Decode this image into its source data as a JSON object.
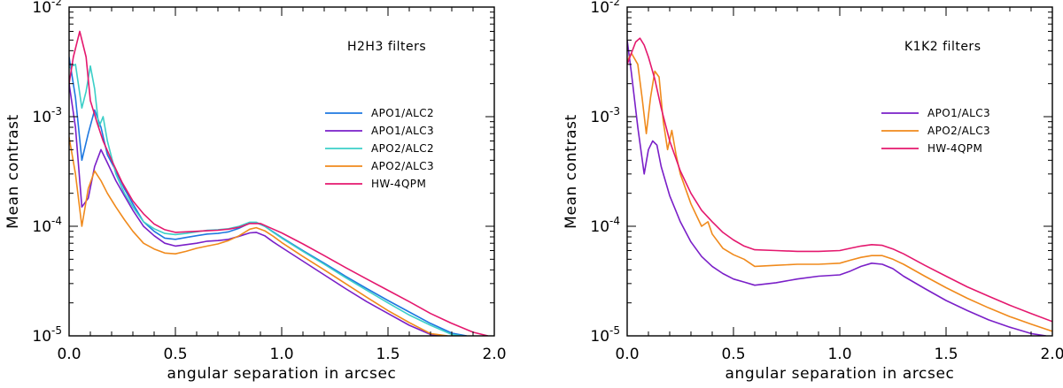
{
  "chart_data": [
    {
      "type": "line",
      "title": "H2H3 filters",
      "xlabel": "angular separation in arcsec",
      "ylabel": "Mean contrast",
      "xlim": [
        0.0,
        2.0
      ],
      "ylim": [
        1e-05,
        0.01
      ],
      "yscale": "log",
      "x_ticks": [
        "0.0",
        "0.5",
        "1.0",
        "1.5",
        "2.0"
      ],
      "y_ticks": [
        {
          "base": "10",
          "exp": "-2"
        },
        {
          "base": "10",
          "exp": "-3"
        },
        {
          "base": "10",
          "exp": "-4"
        },
        {
          "base": "10",
          "exp": "-5"
        }
      ],
      "legend_position": "right-middle",
      "series": [
        {
          "name": "APO1/ALC2",
          "color": "#1e78e0",
          "x": [
            0,
            0.03,
            0.06,
            0.09,
            0.12,
            0.15,
            0.18,
            0.22,
            0.26,
            0.3,
            0.35,
            0.4,
            0.45,
            0.5,
            0.55,
            0.6,
            0.65,
            0.7,
            0.75,
            0.8,
            0.85,
            0.88,
            0.92,
            0.96,
            1.0,
            1.1,
            1.2,
            1.3,
            1.4,
            1.5,
            1.6,
            1.7,
            1.8,
            1.87
          ],
          "y": [
            0.0035,
            0.0015,
            0.0004,
            0.0007,
            0.00115,
            0.0008,
            0.00045,
            0.00032,
            0.00022,
            0.00016,
            0.00011,
            9e-05,
            7.8e-05,
            7.6e-05,
            7.9e-05,
            8.2e-05,
            8.5e-05,
            8.6e-05,
            8.9e-05,
            9.6e-05,
            0.000107,
            0.000108,
            0.0001,
            8.9e-05,
            7.9e-05,
            6e-05,
            4.6e-05,
            3.5e-05,
            2.7e-05,
            2.1e-05,
            1.65e-05,
            1.3e-05,
            1.06e-05,
            1e-05
          ]
        },
        {
          "name": "APO1/ALC3",
          "color": "#7a1fc8",
          "x": [
            0,
            0.03,
            0.06,
            0.09,
            0.12,
            0.15,
            0.18,
            0.22,
            0.26,
            0.3,
            0.35,
            0.4,
            0.45,
            0.5,
            0.55,
            0.6,
            0.65,
            0.7,
            0.75,
            0.8,
            0.85,
            0.88,
            0.92,
            0.96,
            1.0,
            1.1,
            1.2,
            1.3,
            1.4,
            1.5,
            1.6,
            1.7,
            1.76
          ],
          "y": [
            0.002,
            0.0008,
            0.00015,
            0.00018,
            0.00035,
            0.0005,
            0.00038,
            0.00026,
            0.00019,
            0.00014,
            0.0001,
            8.2e-05,
            7e-05,
            6.6e-05,
            6.8e-05,
            7e-05,
            7.3e-05,
            7.4e-05,
            7.6e-05,
            8.1e-05,
            8.7e-05,
            8.8e-05,
            8.2e-05,
            7.2e-05,
            6.4e-05,
            4.8e-05,
            3.6e-05,
            2.7e-05,
            2.05e-05,
            1.6e-05,
            1.25e-05,
            1.03e-05,
            1e-05
          ]
        },
        {
          "name": "APO2/ALC2",
          "color": "#3ccfc8",
          "x": [
            0,
            0.03,
            0.06,
            0.08,
            0.1,
            0.12,
            0.14,
            0.16,
            0.18,
            0.22,
            0.26,
            0.3,
            0.35,
            0.4,
            0.45,
            0.5,
            0.55,
            0.6,
            0.65,
            0.7,
            0.75,
            0.8,
            0.85,
            0.88,
            0.92,
            0.96,
            1.0,
            1.1,
            1.2,
            1.3,
            1.4,
            1.5,
            1.6,
            1.7,
            1.8,
            1.85
          ],
          "y": [
            0.0028,
            0.003,
            0.0012,
            0.0017,
            0.0029,
            0.0018,
            0.0008,
            0.001,
            0.0006,
            0.0003,
            0.0002,
            0.00015,
            0.00011,
            9.5e-05,
            8.6e-05,
            8.4e-05,
            8.6e-05,
            8.9e-05,
            9.2e-05,
            9.3e-05,
            9.5e-05,
            0.0001,
            0.000109,
            0.000109,
            0.0001,
            8.8e-05,
            7.8e-05,
            5.9e-05,
            4.5e-05,
            3.4e-05,
            2.6e-05,
            2e-05,
            1.55e-05,
            1.25e-05,
            1.03e-05,
            1e-05
          ]
        },
        {
          "name": "APO2/ALC3",
          "color": "#f08a1c",
          "x": [
            0,
            0.03,
            0.06,
            0.09,
            0.12,
            0.15,
            0.18,
            0.22,
            0.26,
            0.3,
            0.35,
            0.4,
            0.45,
            0.5,
            0.55,
            0.6,
            0.65,
            0.7,
            0.75,
            0.8,
            0.85,
            0.88,
            0.92,
            0.96,
            1.0,
            1.1,
            1.2,
            1.3,
            1.4,
            1.5,
            1.6,
            1.7,
            1.78
          ],
          "y": [
            0.00065,
            0.0003,
            0.0001,
            0.00022,
            0.00032,
            0.00026,
            0.0002,
            0.00015,
            0.000115,
            9e-05,
            7e-05,
            6.2e-05,
            5.7e-05,
            5.6e-05,
            5.9e-05,
            6.3e-05,
            6.6e-05,
            6.9e-05,
            7.4e-05,
            8.2e-05,
            9.4e-05,
            9.7e-05,
            9.1e-05,
            8.1e-05,
            7.1e-05,
            5.3e-05,
            4e-05,
            3e-05,
            2.25e-05,
            1.7e-05,
            1.32e-05,
            1.05e-05,
            1e-05
          ]
        },
        {
          "name": "HW-4QPM",
          "color": "#e4186e",
          "x": [
            0,
            0.02,
            0.05,
            0.08,
            0.1,
            0.13,
            0.16,
            0.2,
            0.25,
            0.3,
            0.35,
            0.4,
            0.45,
            0.5,
            0.55,
            0.6,
            0.65,
            0.7,
            0.75,
            0.8,
            0.85,
            0.9,
            0.95,
            1.0,
            1.1,
            1.2,
            1.3,
            1.4,
            1.5,
            1.6,
            1.7,
            1.8,
            1.9,
            1.97
          ],
          "y": [
            0.002,
            0.0035,
            0.006,
            0.0035,
            0.0014,
            0.0009,
            0.0006,
            0.0004,
            0.00025,
            0.00017,
            0.00013,
            0.000105,
            9.3e-05,
            8.8e-05,
            8.9e-05,
            9e-05,
            9.1e-05,
            9.2e-05,
            9.4e-05,
            9.8e-05,
            0.000106,
            0.000106,
            9.6e-05,
            8.7e-05,
            6.9e-05,
            5.4e-05,
            4.2e-05,
            3.3e-05,
            2.6e-05,
            2.05e-05,
            1.6e-05,
            1.3e-05,
            1.08e-05,
            1e-05
          ]
        }
      ]
    },
    {
      "type": "line",
      "title": "K1K2 filters",
      "xlabel": "angular separation in arcsec",
      "ylabel": "Mean contrast",
      "xlim": [
        0.0,
        2.0
      ],
      "ylim": [
        1e-05,
        0.01
      ],
      "yscale": "log",
      "x_ticks": [
        "0.0",
        "0.5",
        "1.0",
        "1.5",
        "2.0"
      ],
      "y_ticks": [
        {
          "base": "10",
          "exp": "-2"
        },
        {
          "base": "10",
          "exp": "-3"
        },
        {
          "base": "10",
          "exp": "-4"
        },
        {
          "base": "10",
          "exp": "-5"
        }
      ],
      "legend_position": "right-middle",
      "series": [
        {
          "name": "APO1/ALC3",
          "color": "#7a1fc8",
          "x": [
            0,
            0.02,
            0.05,
            0.08,
            0.1,
            0.12,
            0.14,
            0.16,
            0.2,
            0.25,
            0.3,
            0.35,
            0.4,
            0.45,
            0.5,
            0.55,
            0.6,
            0.7,
            0.8,
            0.9,
            1.0,
            1.05,
            1.1,
            1.15,
            1.2,
            1.25,
            1.3,
            1.4,
            1.5,
            1.6,
            1.7,
            1.8,
            1.9,
            1.97
          ],
          "y": [
            0.005,
            0.0025,
            0.0008,
            0.0003,
            0.0005,
            0.0006,
            0.00055,
            0.00035,
            0.00019,
            0.00011,
            7.2e-05,
            5.3e-05,
            4.3e-05,
            3.7e-05,
            3.3e-05,
            3.1e-05,
            2.9e-05,
            3.05e-05,
            3.3e-05,
            3.5e-05,
            3.6e-05,
            3.9e-05,
            4.3e-05,
            4.6e-05,
            4.5e-05,
            4.1e-05,
            3.5e-05,
            2.7e-05,
            2.1e-05,
            1.7e-05,
            1.4e-05,
            1.2e-05,
            1.05e-05,
            1e-05
          ]
        },
        {
          "name": "APO2/ALC3",
          "color": "#f08a1c",
          "x": [
            0,
            0.02,
            0.05,
            0.07,
            0.09,
            0.11,
            0.13,
            0.15,
            0.17,
            0.19,
            0.21,
            0.23,
            0.25,
            0.3,
            0.35,
            0.38,
            0.4,
            0.45,
            0.5,
            0.55,
            0.6,
            0.7,
            0.8,
            0.9,
            1.0,
            1.05,
            1.1,
            1.15,
            1.2,
            1.25,
            1.3,
            1.4,
            1.5,
            1.6,
            1.7,
            1.8,
            1.9,
            2.0
          ],
          "y": [
            0.0032,
            0.0038,
            0.003,
            0.0015,
            0.0007,
            0.0015,
            0.0026,
            0.0023,
            0.0009,
            0.0005,
            0.00075,
            0.00045,
            0.0003,
            0.00016,
            0.0001,
            0.00011,
            8.5e-05,
            6.3e-05,
            5.5e-05,
            5e-05,
            4.3e-05,
            4.4e-05,
            4.5e-05,
            4.5e-05,
            4.6e-05,
            4.9e-05,
            5.2e-05,
            5.4e-05,
            5.4e-05,
            5e-05,
            4.5e-05,
            3.5e-05,
            2.75e-05,
            2.2e-05,
            1.8e-05,
            1.5e-05,
            1.28e-05,
            1.1e-05
          ]
        },
        {
          "name": "HW-4QPM",
          "color": "#e4186e",
          "x": [
            0,
            0.02,
            0.04,
            0.06,
            0.08,
            0.1,
            0.13,
            0.16,
            0.2,
            0.25,
            0.3,
            0.35,
            0.4,
            0.45,
            0.5,
            0.55,
            0.6,
            0.7,
            0.8,
            0.9,
            1.0,
            1.05,
            1.1,
            1.15,
            1.2,
            1.25,
            1.3,
            1.4,
            1.5,
            1.6,
            1.7,
            1.8,
            1.9,
            2.0
          ],
          "y": [
            0.003,
            0.0038,
            0.0048,
            0.0052,
            0.0045,
            0.0035,
            0.0022,
            0.0012,
            0.0006,
            0.00032,
            0.0002,
            0.00014,
            0.00011,
            8.8e-05,
            7.5e-05,
            6.6e-05,
            6.1e-05,
            6e-05,
            5.9e-05,
            5.9e-05,
            6e-05,
            6.3e-05,
            6.6e-05,
            6.8e-05,
            6.7e-05,
            6.2e-05,
            5.6e-05,
            4.4e-05,
            3.5e-05,
            2.8e-05,
            2.3e-05,
            1.9e-05,
            1.6e-05,
            1.35e-05
          ]
        }
      ]
    }
  ]
}
